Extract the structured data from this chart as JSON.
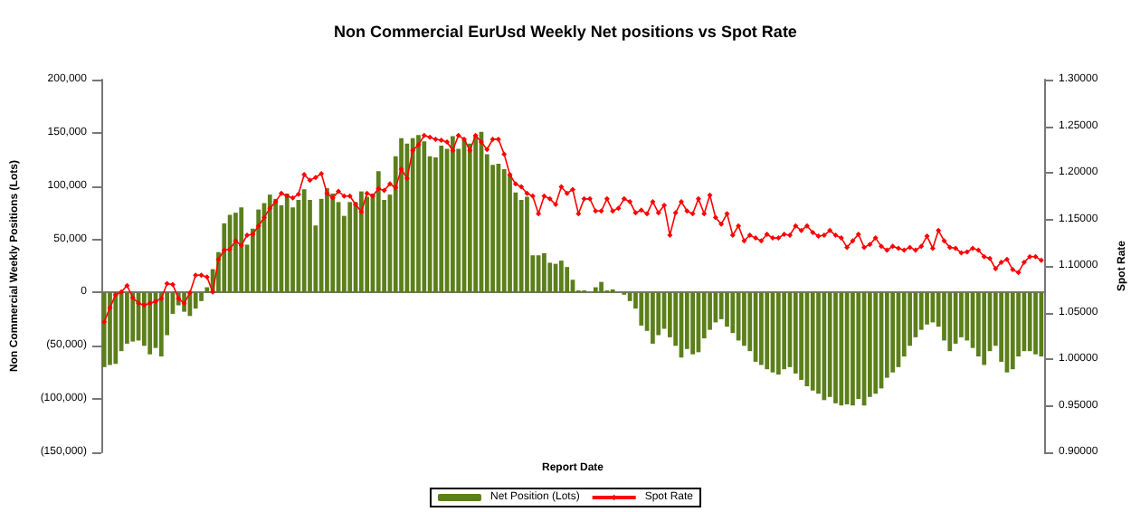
{
  "chart_data": {
    "type": "bar",
    "title": "Non Commercial EurUsd Weekly Net positions vs Spot Rate",
    "xlabel": "Report Date",
    "ylabel": "Non Commercial Weekly Positions (Lots)",
    "y2label": "Spot Rate",
    "categories": [
      null,
      null,
      null,
      null,
      null,
      null,
      null,
      null,
      null,
      null,
      null,
      null,
      null,
      null,
      null,
      null,
      null,
      null,
      null,
      null,
      null,
      null,
      null,
      null,
      null,
      null,
      null,
      null,
      null,
      null,
      null,
      null,
      null,
      null,
      null,
      null,
      null,
      null,
      null,
      null,
      null,
      null,
      null,
      null,
      null,
      null,
      null,
      null,
      null,
      null,
      null,
      null,
      null,
      null,
      null,
      null,
      null,
      null,
      null,
      null,
      null,
      null,
      null,
      null,
      null,
      null,
      null,
      null,
      null,
      null,
      null,
      null,
      null,
      null,
      null,
      null,
      null,
      null,
      null,
      null,
      null,
      null,
      null,
      null,
      null,
      null,
      null,
      null,
      null,
      null,
      null,
      null,
      null,
      null,
      null,
      null,
      null,
      null,
      null,
      null,
      null,
      null,
      null,
      null,
      null,
      null,
      null,
      null,
      null,
      null,
      null,
      null,
      null,
      null,
      null,
      null,
      null,
      null,
      null,
      null,
      null,
      null,
      null,
      null,
      null,
      null,
      null,
      null,
      null,
      null,
      null,
      null,
      null,
      null,
      null,
      null,
      null,
      null,
      null,
      null,
      null,
      null,
      null,
      null,
      null,
      null,
      null,
      null,
      null,
      null,
      null,
      null,
      null,
      null,
      null,
      null,
      null,
      null,
      null,
      null,
      null,
      null,
      null,
      null,
      null
    ],
    "series": [
      {
        "name": "Net Position (Lots)",
        "type": "bar",
        "color": "#5b7f1a",
        "values": [
          -70000,
          -68000,
          -67000,
          -55000,
          -48000,
          -46000,
          -45000,
          -50000,
          -58000,
          -52000,
          -60000,
          -40000,
          -20000,
          -12000,
          -18000,
          -22000,
          -15000,
          -8000,
          5000,
          22000,
          38000,
          65000,
          73000,
          75000,
          80000,
          45000,
          60000,
          78000,
          84000,
          92000,
          88000,
          82000,
          93000,
          80000,
          87000,
          97000,
          87000,
          63000,
          88000,
          98000,
          93000,
          85000,
          72000,
          85000,
          85000,
          95000,
          90000,
          93000,
          114000,
          87000,
          92000,
          128000,
          145000,
          140000,
          145000,
          148000,
          142000,
          128000,
          127000,
          138000,
          135000,
          147000,
          135000,
          143000,
          140000,
          148000,
          151000,
          130000,
          120000,
          121000,
          116000,
          111000,
          94000,
          87000,
          90000,
          35000,
          35000,
          37000,
          28000,
          27000,
          30000,
          24000,
          12000,
          2000,
          2000,
          0,
          5000,
          10000,
          2000,
          3000,
          0,
          -2000,
          -8000,
          -15000,
          -31000,
          -36000,
          -48000,
          -40000,
          -34000,
          -42000,
          -50000,
          -61000,
          -53000,
          -58000,
          -56000,
          -43000,
          -35000,
          -28000,
          -25000,
          -32000,
          -38000,
          -45000,
          -50000,
          -55000,
          -65000,
          -68000,
          -72000,
          -75000,
          -77000,
          -72000,
          -70000,
          -76000,
          -82000,
          -88000,
          -92000,
          -95000,
          -101000,
          -98000,
          -104000,
          -106000,
          -105000,
          -106000,
          -100000,
          -106000,
          -98000,
          -95000,
          -90000,
          -80000,
          -75000,
          -70000,
          -60000,
          -50000,
          -42000,
          -35000,
          -30000,
          -28000,
          -32000,
          -45000,
          -55000,
          -48000,
          -42000,
          -45000,
          -52000,
          -60000,
          -68000,
          -55000,
          -50000,
          -65000,
          -75000,
          -72000,
          -60000,
          -55000,
          -55000,
          -58000,
          -60000
        ]
      },
      {
        "name": "Spot Rate",
        "type": "line",
        "axis": "y2",
        "color": "#ff0000",
        "values": [
          1.04,
          1.055,
          1.069,
          1.072,
          1.079,
          1.066,
          1.06,
          1.058,
          1.06,
          1.062,
          1.065,
          1.081,
          1.08,
          1.065,
          1.06,
          1.071,
          1.09,
          1.09,
          1.088,
          1.072,
          1.107,
          1.117,
          1.118,
          1.127,
          1.122,
          1.133,
          1.134,
          1.143,
          1.152,
          1.162,
          1.169,
          1.178,
          1.175,
          1.173,
          1.177,
          1.198,
          1.192,
          1.195,
          1.199,
          1.178,
          1.173,
          1.18,
          1.175,
          1.175,
          1.166,
          1.158,
          1.178,
          1.175,
          1.183,
          1.181,
          1.188,
          1.184,
          1.204,
          1.194,
          1.224,
          1.23,
          1.24,
          1.238,
          1.236,
          1.235,
          1.233,
          1.224,
          1.24,
          1.236,
          1.224,
          1.24,
          1.233,
          1.225,
          1.236,
          1.236,
          1.22,
          1.198,
          1.188,
          1.185,
          1.178,
          1.175,
          1.156,
          1.175,
          1.172,
          1.166,
          1.185,
          1.178,
          1.182,
          1.156,
          1.172,
          1.172,
          1.159,
          1.159,
          1.172,
          1.159,
          1.162,
          1.172,
          1.169,
          1.157,
          1.16,
          1.156,
          1.169,
          1.157,
          1.165,
          1.133,
          1.157,
          1.169,
          1.159,
          1.156,
          1.172,
          1.156,
          1.176,
          1.152,
          1.145,
          1.156,
          1.133,
          1.143,
          1.127,
          1.133,
          1.13,
          1.127,
          1.134,
          1.13,
          1.13,
          1.134,
          1.133,
          1.143,
          1.138,
          1.143,
          1.136,
          1.132,
          1.133,
          1.138,
          1.133,
          1.13,
          1.12,
          1.127,
          1.134,
          1.12,
          1.123,
          1.13,
          1.121,
          1.117,
          1.121,
          1.119,
          1.117,
          1.12,
          1.117,
          1.121,
          1.132,
          1.119,
          1.138,
          1.127,
          1.12,
          1.119,
          1.114,
          1.115,
          1.119,
          1.117,
          1.11,
          1.108,
          1.097,
          1.104,
          1.107,
          1.096,
          1.093,
          1.104,
          1.11,
          1.11,
          1.106
        ]
      }
    ],
    "ylim": [
      -150000,
      200000
    ],
    "yticks": [
      {
        "value": -150000,
        "label": "(150,000)"
      },
      {
        "value": -100000,
        "label": "(100,000)"
      },
      {
        "value": -50000,
        "label": "(50,000)"
      },
      0,
      {
        "value": 50000,
        "label": "50,000"
      },
      {
        "value": 100000,
        "label": "100,000"
      },
      {
        "value": 150000,
        "label": "150,000"
      },
      {
        "value": 200000,
        "label": "200,000"
      }
    ],
    "y2lim": [
      0.9,
      1.3
    ],
    "y2ticks": [
      {
        "value": 0.9,
        "label": "0.90000"
      },
      {
        "value": 0.95,
        "label": "0.95000"
      },
      {
        "value": 1.0,
        "label": "1.00000"
      },
      {
        "value": 1.05,
        "label": "1.05000"
      },
      {
        "value": 1.1,
        "label": "1.10000"
      },
      {
        "value": 1.15,
        "label": "1.15000"
      },
      {
        "value": 1.2,
        "label": "1.20000"
      },
      {
        "value": 1.25,
        "label": "1.25000"
      },
      {
        "value": 1.3,
        "label": "1.30000"
      }
    ],
    "marker": "diamond",
    "legend": "bottom"
  }
}
